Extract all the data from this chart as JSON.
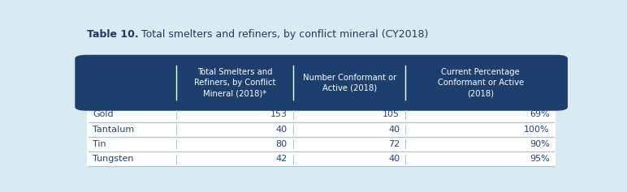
{
  "title_bold": "Table 10.",
  "title_normal": " Total smelters and refiners, by conflict mineral (CY2018)",
  "col_headers": [
    "Total Smelters and\nRefiners, by Conflict\nMineral (2018)*",
    "Number Conformant or\nActive (2018)",
    "Current Percentage\nConformant or Active\n(2018)"
  ],
  "row_labels": [
    "Gold",
    "Tantalum",
    "Tin",
    "Tungsten"
  ],
  "col1": [
    "153",
    "40",
    "80",
    "42"
  ],
  "col2": [
    "105",
    "40",
    "72",
    "40"
  ],
  "col3": [
    "69%",
    "100%",
    "90%",
    "95%"
  ],
  "header_bg": "#1d3f6e",
  "header_text": "#ffffff",
  "row_label_text": "#1d4280",
  "data_text": "#1d4280",
  "divider_color": "#8ecfe8",
  "background_color": "#daeaf5",
  "title_color": "#1d3a5c",
  "table_bg": "#ffffff"
}
